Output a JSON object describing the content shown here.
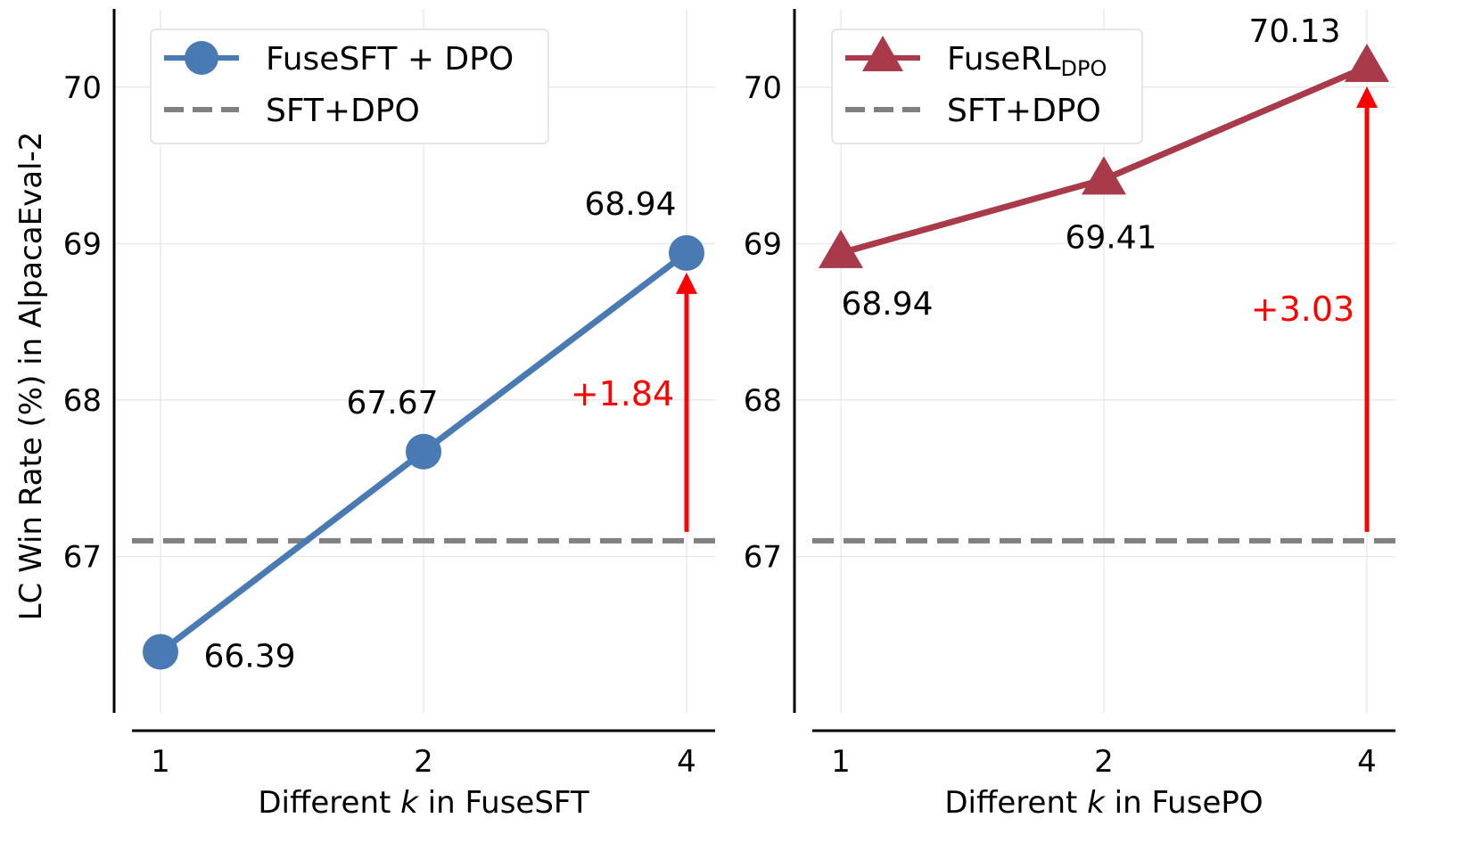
{
  "chart_data": [
    {
      "type": "line",
      "x": [
        "1",
        "2",
        "4"
      ],
      "xlabel_parts": [
        "Different ",
        "k",
        " in FuseSFT"
      ],
      "ylabel": "LC Win Rate (%) in AlpacaEval-2",
      "ylim": [
        66.0,
        70.5
      ],
      "yticks": [
        "67",
        "68",
        "69",
        "70"
      ],
      "grid": true,
      "series": [
        {
          "name": "FuseSFT + DPO",
          "values": [
            66.39,
            67.67,
            68.94
          ],
          "labels": [
            "66.39",
            "67.67",
            "68.94"
          ],
          "color": "#4a7ab3",
          "marker": "circle"
        }
      ],
      "baseline": {
        "name": "SFT+DPO",
        "value": 67.1,
        "color": "#808080",
        "style": "dashed"
      },
      "annotation": {
        "text": "+1.84",
        "color": "#ff0000",
        "at": "4"
      },
      "legend": "top-left"
    },
    {
      "type": "line",
      "x": [
        "1",
        "2",
        "4"
      ],
      "xlabel_parts": [
        "Different ",
        "k",
        " in FusePO"
      ],
      "ylim": [
        66.0,
        70.5
      ],
      "yticks": [
        "67",
        "68",
        "69",
        "70"
      ],
      "grid": true,
      "series": [
        {
          "name": "FuseRL",
          "name_sub": "DPO",
          "values": [
            68.94,
            69.41,
            70.13
          ],
          "labels": [
            "68.94",
            "69.41",
            "70.13"
          ],
          "color": "#a83a4a",
          "marker": "triangle"
        }
      ],
      "baseline": {
        "name": "SFT+DPO",
        "value": 67.1,
        "color": "#808080",
        "style": "dashed"
      },
      "annotation": {
        "text": "+3.03",
        "color": "#ff0000",
        "at": "4"
      },
      "legend": "top-left"
    }
  ]
}
